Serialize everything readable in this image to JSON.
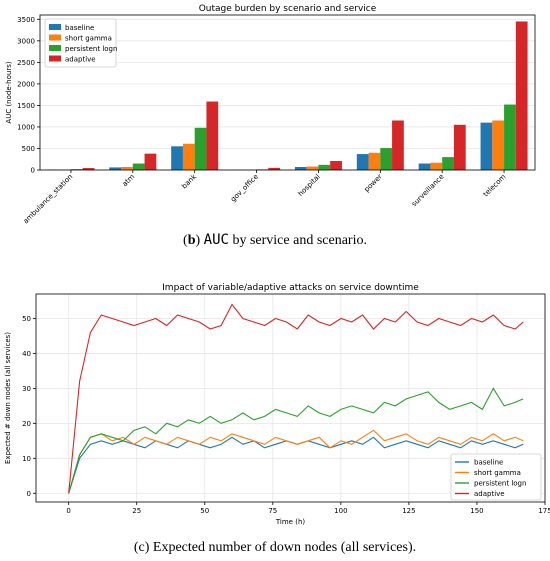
{
  "caption_b": {
    "label": "b",
    "prefix": "(",
    "suffix": ")",
    "code": "AUC",
    "text": " by service and scenario."
  },
  "caption_c": {
    "text": "(c) Expected number of down nodes (all services)."
  },
  "colors": {
    "baseline": "#1f77b4",
    "short gamma": "#ff7f0e",
    "persistent logn": "#2ca02c",
    "adaptive": "#d62728"
  },
  "chart_data": [
    {
      "type": "bar",
      "title": "Outage burden by scenario and service",
      "xlabel": "",
      "ylabel": "AUC (node-hours)",
      "ylim": [
        0,
        3600
      ],
      "yticks": [
        0,
        500,
        1000,
        1500,
        2000,
        2500,
        3000,
        3500
      ],
      "grid": true,
      "legend": "top-left",
      "categories": [
        "ambulance_station",
        "atm",
        "bank",
        "gov_office",
        "hospital",
        "power",
        "surveillance",
        "telecom"
      ],
      "series": [
        {
          "name": "baseline",
          "values": [
            10,
            60,
            550,
            5,
            70,
            370,
            150,
            1100
          ]
        },
        {
          "name": "short gamma",
          "values": [
            12,
            70,
            610,
            6,
            80,
            400,
            170,
            1150
          ]
        },
        {
          "name": "persistent logn",
          "values": [
            20,
            150,
            980,
            15,
            120,
            510,
            300,
            1520
          ]
        },
        {
          "name": "adaptive",
          "values": [
            45,
            380,
            1590,
            50,
            210,
            1150,
            1050,
            3450
          ]
        }
      ]
    },
    {
      "type": "line",
      "title": "Impact of variable/adaptive attacks on service downtime",
      "xlabel": "Time (h)",
      "ylabel": "Expected # down nodes (all services)",
      "xlim": [
        -12,
        175
      ],
      "ylim": [
        -2.5,
        57
      ],
      "xticks": [
        0,
        25,
        50,
        75,
        100,
        125,
        150,
        175
      ],
      "yticks": [
        0,
        10,
        20,
        30,
        40,
        50
      ],
      "grid": true,
      "legend": "bottom-right",
      "x": [
        0,
        4,
        8,
        12,
        16,
        20,
        24,
        28,
        32,
        36,
        40,
        44,
        48,
        52,
        56,
        60,
        64,
        68,
        72,
        76,
        80,
        84,
        88,
        92,
        96,
        100,
        104,
        108,
        112,
        116,
        120,
        124,
        128,
        132,
        136,
        140,
        144,
        148,
        152,
        156,
        160,
        164,
        167
      ],
      "series": [
        {
          "name": "baseline",
          "values": [
            0,
            10,
            14,
            15,
            14,
            15,
            14,
            13,
            15,
            14,
            13,
            15,
            14,
            13,
            14,
            16,
            14,
            15,
            13,
            14,
            15,
            14,
            15,
            14,
            13,
            14,
            15,
            14,
            16,
            13,
            14,
            15,
            14,
            13,
            15,
            14,
            13,
            15,
            14,
            15,
            14,
            13,
            14
          ]
        },
        {
          "name": "short gamma",
          "values": [
            0,
            11,
            16,
            17,
            15,
            16,
            14,
            16,
            15,
            14,
            16,
            15,
            14,
            16,
            15,
            17,
            16,
            15,
            14,
            16,
            15,
            14,
            15,
            16,
            13,
            15,
            14,
            16,
            18,
            15,
            16,
            17,
            15,
            14,
            16,
            15,
            14,
            16,
            15,
            17,
            15,
            16,
            15
          ]
        },
        {
          "name": "persistent logn",
          "values": [
            0,
            11,
            16,
            17,
            16,
            15,
            18,
            19,
            17,
            20,
            19,
            21,
            20,
            22,
            20,
            21,
            23,
            21,
            22,
            24,
            23,
            22,
            25,
            23,
            22,
            24,
            25,
            24,
            23,
            26,
            25,
            27,
            28,
            29,
            26,
            24,
            25,
            26,
            24,
            30,
            25,
            26,
            27
          ]
        },
        {
          "name": "adaptive",
          "values": [
            0,
            32,
            46,
            51,
            50,
            49,
            48,
            49,
            50,
            48,
            51,
            50,
            49,
            47,
            48,
            54,
            50,
            49,
            48,
            50,
            49,
            47,
            51,
            49,
            48,
            50,
            49,
            51,
            47,
            50,
            49,
            52,
            49,
            48,
            50,
            49,
            48,
            50,
            49,
            51,
            48,
            47,
            49
          ]
        }
      ]
    }
  ]
}
